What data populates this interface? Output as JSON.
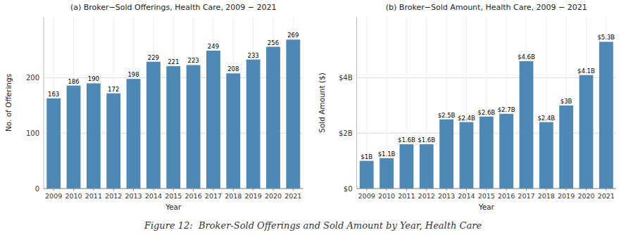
{
  "chart_data": [
    {
      "type": "bar",
      "title": "(a) Broker−Sold Offerings, Health Care, 2009 − 2021",
      "x_label": "Year",
      "y_label": "No. of Offerings",
      "categories": [
        "2009",
        "2010",
        "2011",
        "2012",
        "2013",
        "2014",
        "2015",
        "2016",
        "2017",
        "2018",
        "2019",
        "2020",
        "2021"
      ],
      "values": [
        163,
        186,
        190,
        172,
        198,
        229,
        221,
        223,
        249,
        208,
        233,
        256,
        269
      ],
      "color": "#4d89b4",
      "ylim": [
        0,
        310
      ],
      "yticks": [
        0,
        100,
        200
      ],
      "grid": true,
      "data_labels": true,
      "annotations": [
        "Figure 12:  Broker-Sold Offerings and Sold Amount by Year, Health Care"
      ]
    },
    {
      "type": "bar",
      "title": "(b) Broker−Sold Amount, Health Care, 2009 − 2021",
      "x_label": "Year",
      "y_label": "Sold Amount ($)",
      "categories": [
        "2009",
        "2010",
        "2011",
        "2012",
        "2013",
        "2014",
        "2015",
        "2016",
        "2017",
        "2018",
        "2019",
        "2020",
        "2021"
      ],
      "values": [
        1000000000,
        1100000000,
        1600000000,
        1600000000,
        2500000000,
        2400000000,
        2600000000,
        2700000000,
        4600000000,
        2400000000,
        3000000000,
        4100000000,
        5300000000
      ],
      "value_labels": [
        "$1B",
        "$1.1B",
        "$1.6B",
        "$1.6B",
        "$2.5B",
        "$2.4B",
        "$2.6B",
        "$2.7B",
        "$4.6B",
        "$2.4B",
        "$3B",
        "$4.1B",
        "$5.3B"
      ],
      "color": "#4d89b4",
      "ylim": [
        0,
        6200000000
      ],
      "yticks": [
        {
          "value": 0,
          "label": "$0"
        },
        {
          "value": 2000000000,
          "label": "$2B"
        },
        {
          "value": 4000000000,
          "label": "$4B"
        }
      ],
      "grid": true,
      "data_labels": true
    }
  ]
}
